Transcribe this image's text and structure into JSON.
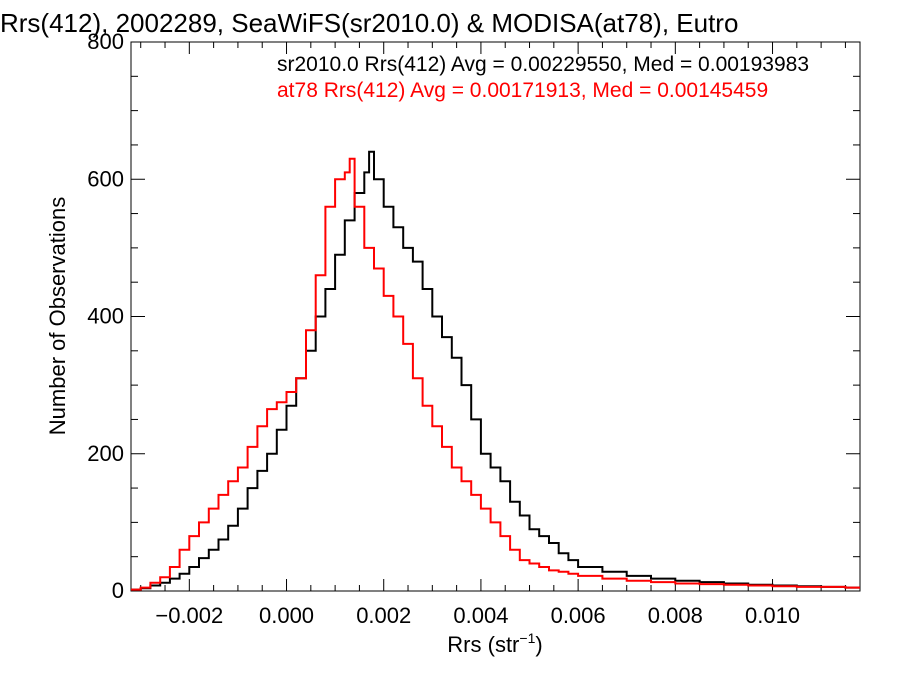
{
  "chart_data": {
    "type": "line",
    "style": "step-histogram",
    "title": "Rrs(412), 2002289, SeaWiFS(sr2010.0) & MODISA(at78), Eutro",
    "xlabel": "Rrs (str",
    "xlabel_sup": "−1",
    "xlabel_close": ")",
    "ylabel": "Number of Observations",
    "xlim": [
      -0.0032,
      0.0118
    ],
    "ylim": [
      0,
      800
    ],
    "xticks": [
      -0.002,
      0.0,
      0.002,
      0.004,
      0.006,
      0.008,
      0.01
    ],
    "xtick_labels": [
      "−0.002",
      "0.000",
      "0.002",
      "0.004",
      "0.006",
      "0.008",
      "0.010"
    ],
    "yticks": [
      0,
      200,
      400,
      600,
      800
    ],
    "ytick_labels": [
      "0",
      "200",
      "400",
      "600",
      "800"
    ],
    "grid": false,
    "legend_position": "top-right",
    "series": [
      {
        "name": "sr2010.0 Rrs(412) Avg = 0.00229550, Med = 0.00193983",
        "color": "#000000",
        "x": [
          -0.0032,
          -0.003,
          -0.0028,
          -0.0026,
          -0.0024,
          -0.0022,
          -0.002,
          -0.0018,
          -0.0016,
          -0.0014,
          -0.0012,
          -0.001,
          -0.0008,
          -0.0006,
          -0.0004,
          -0.0002,
          0.0,
          0.0002,
          0.0004,
          0.0006,
          0.0008,
          0.001,
          0.0012,
          0.0014,
          0.0016,
          0.0017,
          0.0018,
          0.002,
          0.0022,
          0.0024,
          0.0026,
          0.0028,
          0.003,
          0.0032,
          0.0034,
          0.0036,
          0.0038,
          0.004,
          0.0042,
          0.0044,
          0.0046,
          0.0048,
          0.005,
          0.0052,
          0.0054,
          0.0056,
          0.0058,
          0.006,
          0.0065,
          0.007,
          0.0075,
          0.008,
          0.0085,
          0.009,
          0.0095,
          0.01,
          0.0105,
          0.011,
          0.0115,
          0.0118
        ],
        "y": [
          2,
          4,
          8,
          12,
          18,
          25,
          35,
          48,
          60,
          75,
          95,
          120,
          150,
          175,
          200,
          235,
          270,
          310,
          350,
          400,
          440,
          490,
          540,
          580,
          610,
          640,
          600,
          560,
          530,
          500,
          480,
          440,
          400,
          370,
          340,
          300,
          250,
          200,
          180,
          160,
          130,
          110,
          90,
          80,
          70,
          55,
          45,
          35,
          28,
          22,
          18,
          15,
          13,
          11,
          9,
          8,
          7,
          6,
          5,
          5
        ]
      },
      {
        "name": "at78 Rrs(412) Avg = 0.00171913, Med = 0.00145459",
        "color": "#ff0000",
        "x": [
          -0.0032,
          -0.003,
          -0.0028,
          -0.0026,
          -0.0024,
          -0.0022,
          -0.002,
          -0.0018,
          -0.0016,
          -0.0014,
          -0.0012,
          -0.001,
          -0.0008,
          -0.0006,
          -0.0004,
          -0.0002,
          0.0,
          0.0002,
          0.0004,
          0.0006,
          0.0008,
          0.001,
          0.0012,
          0.0013,
          0.0014,
          0.0016,
          0.0018,
          0.002,
          0.0022,
          0.0024,
          0.0026,
          0.0028,
          0.003,
          0.0032,
          0.0034,
          0.0036,
          0.0038,
          0.004,
          0.0042,
          0.0044,
          0.0046,
          0.0048,
          0.005,
          0.0052,
          0.0054,
          0.0056,
          0.0058,
          0.006,
          0.0065,
          0.007,
          0.0075,
          0.008,
          0.0085,
          0.009,
          0.0095,
          0.01,
          0.0105,
          0.011,
          0.0115,
          0.0118
        ],
        "y": [
          2,
          5,
          12,
          20,
          35,
          60,
          80,
          100,
          120,
          140,
          160,
          180,
          210,
          240,
          265,
          275,
          290,
          310,
          380,
          460,
          560,
          600,
          610,
          630,
          560,
          500,
          470,
          430,
          400,
          360,
          310,
          270,
          240,
          210,
          180,
          160,
          140,
          120,
          100,
          80,
          60,
          45,
          40,
          35,
          30,
          28,
          25,
          22,
          18,
          15,
          13,
          11,
          10,
          9,
          8,
          7,
          6,
          6,
          5,
          5
        ]
      }
    ]
  }
}
